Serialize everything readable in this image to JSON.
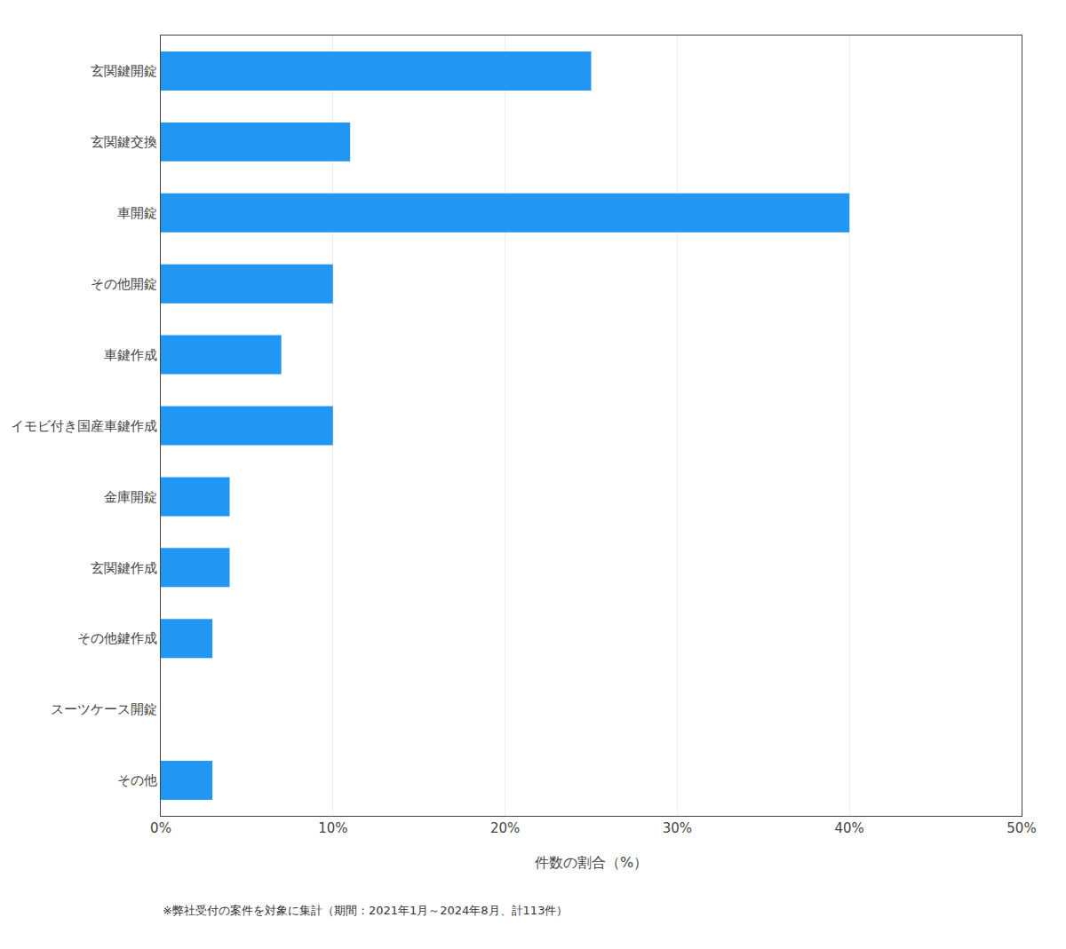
{
  "chart_data": {
    "type": "bar",
    "orientation": "horizontal",
    "categories": [
      "玄関鍵開錠",
      "玄関鍵交換",
      "車開錠",
      "その他開錠",
      "車鍵作成",
      "イモビ付き国産車鍵作成",
      "金庫開錠",
      "玄関鍵作成",
      "その他鍵作成",
      "スーツケース開錠",
      "その他"
    ],
    "values": [
      25.0,
      11.0,
      40.0,
      10.0,
      7.0,
      10.0,
      4.0,
      4.0,
      3.0,
      0.0,
      3.0
    ],
    "color": "#2196F3",
    "xlabel": "件数の割合（%）",
    "xlim": [
      0,
      50
    ],
    "xticks": [
      {
        "value": 0,
        "label": "0%"
      },
      {
        "value": 10,
        "label": "10%"
      },
      {
        "value": 20,
        "label": "20%"
      },
      {
        "value": 30,
        "label": "30%"
      },
      {
        "value": 40,
        "label": "40%"
      },
      {
        "value": 50,
        "label": "50%"
      }
    ],
    "grid": true,
    "annotations": [
      "※弊社受付の案件を対象に集計（期間：2021年1月～2024年8月、計113件）"
    ]
  }
}
